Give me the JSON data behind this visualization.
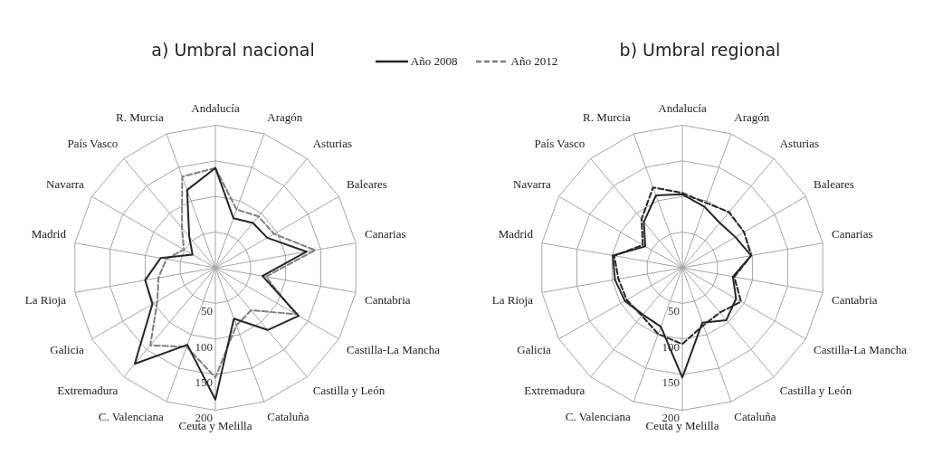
{
  "chart_data": [
    {
      "type": "radar",
      "title": "a) Umbral nacional",
      "categories": [
        "Andalucía",
        "Aragón",
        "Asturias",
        "Baleares",
        "Canarias",
        "Cantabria",
        "Castilla-La Mancha",
        "Castilla y León",
        "Cataluña",
        "Ceuta y Melilla",
        "C. Valenciana",
        "Extremadura",
        "Galicia",
        "La Rioja",
        "Madrid",
        "Navarra",
        "País Vasco",
        "R. Murcia"
      ],
      "series": [
        {
          "name": "Año 2008",
          "color": "#262626",
          "line_style": "solid",
          "values": [
            140,
            74,
            82,
            84,
            130,
            67,
            135,
            114,
            76,
            185,
            115,
            176,
            102,
            100,
            78,
            37,
            57,
            116
          ]
        },
        {
          "name": "Año 2012",
          "color": "#7f7f7f",
          "line_style": "dashed",
          "values": [
            140,
            87,
            94,
            95,
            142,
            72,
            130,
            78,
            86,
            154,
            118,
            142,
            94,
            81,
            70,
            51,
            73,
            136
          ]
        }
      ],
      "ylim": [
        0,
        200
      ],
      "yticks": [
        50,
        100,
        150,
        200
      ],
      "grid": true,
      "legend": "top",
      "marker": "none"
    },
    {
      "type": "radar",
      "title": "b) Umbral regional",
      "categories": [
        "Andalucía",
        "Aragón",
        "Asturias",
        "Baleares",
        "Canarias",
        "Cantabria",
        "Castilla-La Mancha",
        "Castilla y León",
        "Cataluña",
        "Ceuta y Melilla",
        "C. Valenciana",
        "Extremadura",
        "Galicia",
        "La Rioja",
        "Madrid",
        "Navarra",
        "País Vasco",
        "R. Murcia"
      ],
      "series": [
        {
          "color": "#262626",
          "line_style": "solid",
          "values": [
            103,
            91,
            82,
            86,
            98,
            72,
            87,
            96,
            82,
            154,
            88,
            86,
            93,
            96,
            99,
            60,
            84,
            108
          ]
        },
        {
          "color": "#262626",
          "line_style": "dashed",
          "values": [
            105,
            97,
            102,
            100,
            98,
            74,
            95,
            82,
            86,
            107,
            99,
            88,
            90,
            91,
            97,
            64,
            89,
            120
          ]
        }
      ],
      "ylim": [
        0,
        200
      ],
      "yticks": [
        50,
        100,
        150,
        200
      ],
      "grid": true,
      "marker": "none"
    }
  ]
}
